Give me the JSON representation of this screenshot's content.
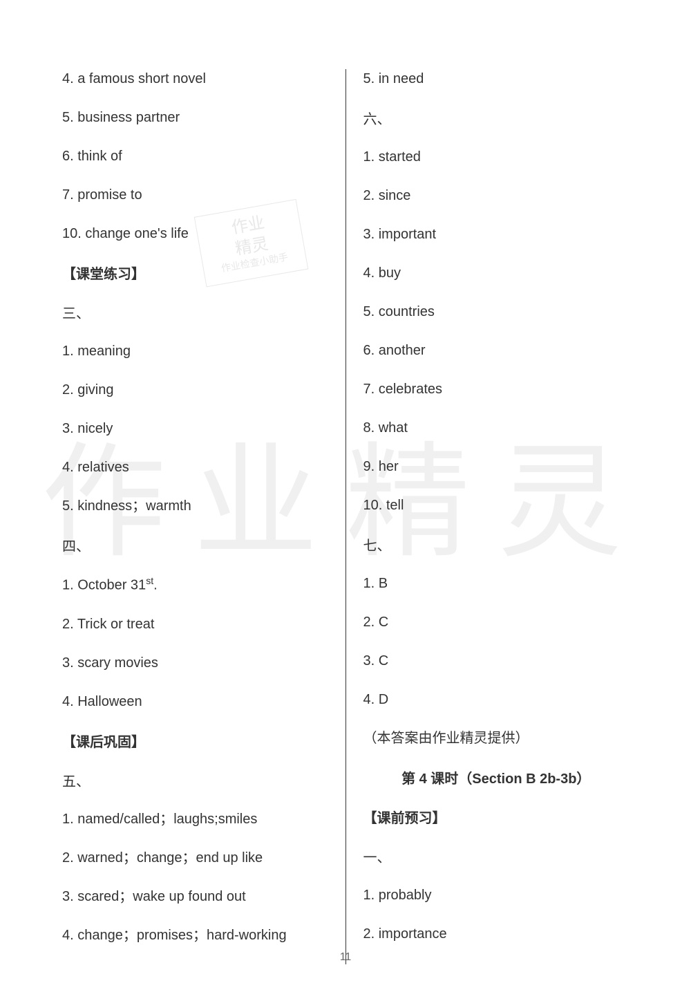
{
  "watermark_main": "作业精灵",
  "watermark_small_line1": "作业",
  "watermark_small_line2": "精灵",
  "watermark_small_sub": "作业检查小助手",
  "page_number": "11",
  "left": {
    "items_top": [
      "4. a famous short novel",
      "5. business partner",
      "6. think of",
      "7. promise to",
      "10. change one's life"
    ],
    "header1": "【课堂练习】",
    "section3_label": "三、",
    "section3": [
      "1. meaning",
      "2. giving",
      "3. nicely",
      "4. relatives",
      "5. kindness；warmth"
    ],
    "section4_label": "四、",
    "section4": [
      "1. October 31",
      "2. Trick or treat",
      "3.  scary movies",
      "4.  Halloween"
    ],
    "section4_sup": "st",
    "section4_suffix": ".",
    "header2": "【课后巩固】",
    "section5_label": "五、",
    "section5": [
      "1. named/called；laughs;smiles",
      "2. warned；change；end up like",
      "3. scared；wake up found out",
      "4. change；promises；hard-working"
    ]
  },
  "right": {
    "items_top": [
      "5. in need"
    ],
    "section6_label": "六、",
    "section6": [
      "1. started",
      "2. since",
      "3. important",
      "4. buy",
      "5. countries",
      "6. another",
      "7. celebrates",
      "8. what",
      "9. her",
      "10. tell"
    ],
    "section7_label": "七、",
    "section7": [
      "1. B",
      "2. C",
      "3.  C",
      "4.  D"
    ],
    "credit": "（本答案由作业精灵提供）",
    "lesson_title": "第 4 课时（Section B 2b-3b）",
    "header3": "【课前预习】",
    "section1_label": "一、",
    "section1": [
      "1. probably",
      "2. importance"
    ]
  }
}
